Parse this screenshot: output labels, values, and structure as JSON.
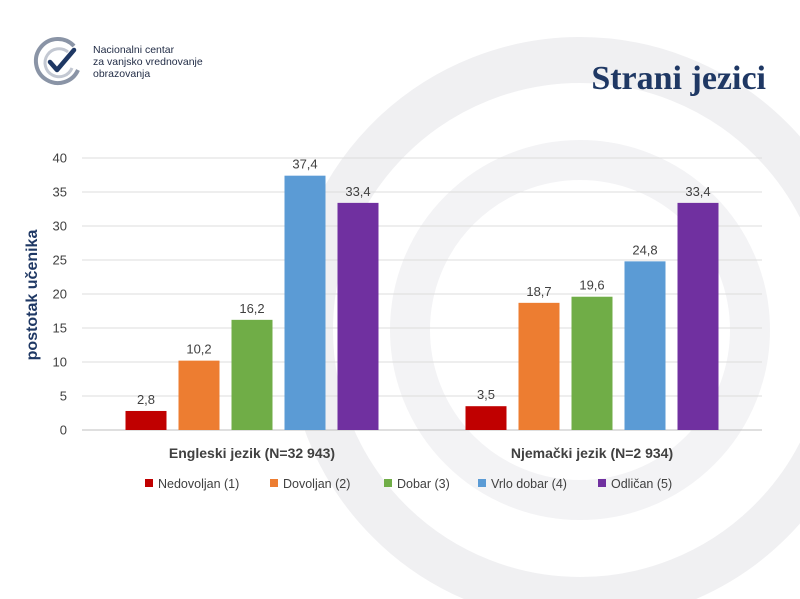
{
  "header": {
    "org_lines": [
      "Nacionalni centar",
      "za vanjsko vrednovanje",
      "obrazovanja"
    ],
    "title": "Strani jezici"
  },
  "colors": {
    "title": "#1f3864",
    "series": [
      "#c00000",
      "#ed7d31",
      "#70ad47",
      "#5b9bd5",
      "#7030a0"
    ]
  },
  "chart_data": {
    "type": "bar",
    "categories": [
      "Engleski jezik (N=32 943)",
      "Njemački jezik (N=2 934)"
    ],
    "series": [
      {
        "name": "Nedovoljan (1)",
        "values": [
          2.8,
          3.5
        ]
      },
      {
        "name": "Dovoljan (2)",
        "values": [
          10.2,
          18.7
        ]
      },
      {
        "name": "Dobar (3)",
        "values": [
          16.2,
          19.6
        ]
      },
      {
        "name": "Vrlo dobar (4)",
        "values": [
          37.4,
          24.8
        ]
      },
      {
        "name": "Odličan (5)",
        "values": [
          33.4,
          33.4
        ]
      }
    ],
    "ylabel": "postotak učenika",
    "xlabel": "",
    "ylim": [
      0,
      40
    ],
    "yticks": [
      0,
      5,
      10,
      15,
      20,
      25,
      30,
      35,
      40
    ],
    "grid": true,
    "legend": "bottom",
    "data_labels": true
  }
}
